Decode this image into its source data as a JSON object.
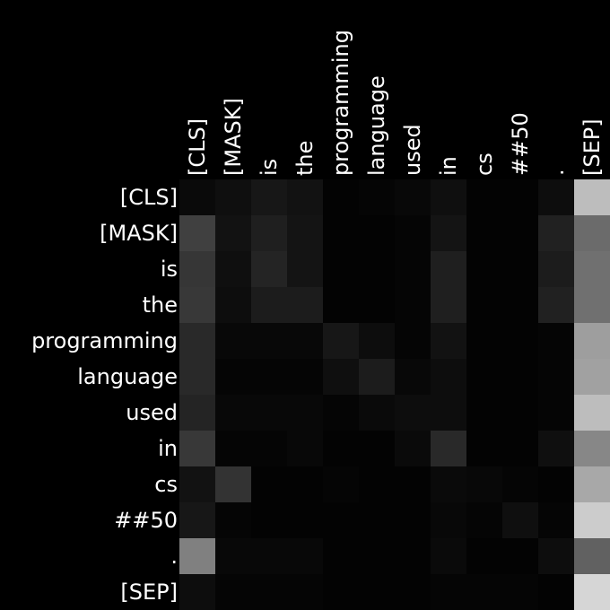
{
  "chart_data": {
    "type": "heatmap",
    "title": "",
    "xlabel": "",
    "ylabel": "",
    "x_labels": [
      "[CLS]",
      "[MASK]",
      "is",
      "the",
      "programming",
      "language",
      "used",
      "in",
      "cs",
      "##50",
      ".",
      "[SEP]"
    ],
    "y_labels": [
      "[CLS]",
      "[MASK]",
      "is",
      "the",
      "programming",
      "language",
      "used",
      "in",
      "cs",
      "##50",
      ".",
      "[SEP]"
    ],
    "colormap": "grayscale",
    "color_low": "#000000",
    "color_high": "#ffffff",
    "value_range": [
      0,
      1
    ],
    "values": [
      [
        0.04,
        0.06,
        0.09,
        0.07,
        0.01,
        0.02,
        0.03,
        0.06,
        0.01,
        0.01,
        0.05,
        0.74
      ],
      [
        0.25,
        0.07,
        0.12,
        0.08,
        0.01,
        0.01,
        0.02,
        0.08,
        0.01,
        0.01,
        0.13,
        0.42
      ],
      [
        0.21,
        0.06,
        0.14,
        0.08,
        0.01,
        0.01,
        0.02,
        0.12,
        0.01,
        0.01,
        0.11,
        0.44
      ],
      [
        0.22,
        0.05,
        0.11,
        0.11,
        0.01,
        0.01,
        0.02,
        0.12,
        0.01,
        0.01,
        0.13,
        0.44
      ],
      [
        0.16,
        0.03,
        0.03,
        0.03,
        0.09,
        0.05,
        0.02,
        0.07,
        0.01,
        0.01,
        0.02,
        0.62
      ],
      [
        0.16,
        0.02,
        0.02,
        0.02,
        0.06,
        0.11,
        0.03,
        0.05,
        0.01,
        0.01,
        0.02,
        0.63
      ],
      [
        0.14,
        0.03,
        0.03,
        0.03,
        0.02,
        0.04,
        0.05,
        0.05,
        0.01,
        0.01,
        0.02,
        0.74
      ],
      [
        0.22,
        0.02,
        0.02,
        0.03,
        0.01,
        0.01,
        0.04,
        0.16,
        0.01,
        0.01,
        0.06,
        0.53
      ],
      [
        0.07,
        0.2,
        0.01,
        0.01,
        0.02,
        0.01,
        0.01,
        0.04,
        0.03,
        0.02,
        0.01,
        0.66
      ],
      [
        0.09,
        0.02,
        0.01,
        0.01,
        0.01,
        0.01,
        0.01,
        0.03,
        0.02,
        0.06,
        0.02,
        0.8
      ],
      [
        0.5,
        0.03,
        0.03,
        0.03,
        0.01,
        0.01,
        0.01,
        0.04,
        0.01,
        0.01,
        0.05,
        0.38
      ],
      [
        0.05,
        0.02,
        0.02,
        0.02,
        0.01,
        0.01,
        0.01,
        0.02,
        0.02,
        0.02,
        0.01,
        0.84
      ]
    ]
  }
}
